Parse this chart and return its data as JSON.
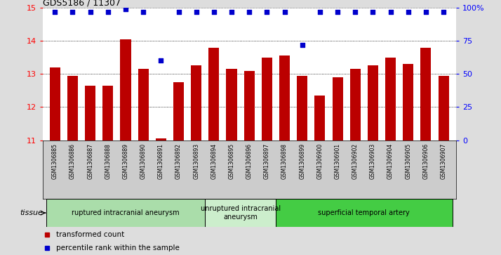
{
  "title": "GDS5186 / 11307",
  "samples": [
    "GSM1306885",
    "GSM1306886",
    "GSM1306887",
    "GSM1306888",
    "GSM1306889",
    "GSM1306890",
    "GSM1306891",
    "GSM1306892",
    "GSM1306893",
    "GSM1306894",
    "GSM1306895",
    "GSM1306896",
    "GSM1306897",
    "GSM1306898",
    "GSM1306899",
    "GSM1306900",
    "GSM1306901",
    "GSM1306902",
    "GSM1306903",
    "GSM1306904",
    "GSM1306905",
    "GSM1306906",
    "GSM1306907"
  ],
  "bar_values": [
    13.2,
    12.95,
    12.65,
    12.65,
    14.05,
    13.15,
    11.05,
    12.75,
    13.25,
    13.8,
    13.15,
    13.1,
    13.5,
    13.55,
    12.95,
    12.35,
    12.9,
    13.15,
    13.25,
    13.5,
    13.3,
    13.8,
    12.95
  ],
  "percentile_values": [
    97,
    97,
    97,
    97,
    99,
    97,
    60,
    97,
    97,
    97,
    97,
    97,
    97,
    97,
    72,
    97,
    97,
    97,
    97,
    97,
    97,
    97,
    97
  ],
  "bar_color": "#bb0000",
  "dot_color": "#0000cc",
  "ylim_left": [
    11,
    15
  ],
  "ylim_right": [
    0,
    100
  ],
  "yticks_left": [
    11,
    12,
    13,
    14,
    15
  ],
  "yticks_right": [
    0,
    25,
    50,
    75,
    100
  ],
  "ytick_labels_right": [
    "0",
    "25",
    "50",
    "75",
    "100%"
  ],
  "grid_values": [
    12,
    13,
    14
  ],
  "tissue_groups": [
    {
      "label": "ruptured intracranial aneurysm",
      "start": 0,
      "end": 9,
      "color": "#aaddaa"
    },
    {
      "label": "unruptured intracranial\naneurysm",
      "start": 9,
      "end": 13,
      "color": "#cceecc"
    },
    {
      "label": "superficial temporal artery",
      "start": 13,
      "end": 23,
      "color": "#44cc44"
    }
  ],
  "legend_items": [
    {
      "label": "transformed count",
      "color": "#bb0000"
    },
    {
      "label": "percentile rank within the sample",
      "color": "#0000cc"
    }
  ],
  "background_color": "#dddddd",
  "plot_bg_color": "#ffffff",
  "xticklabel_bg": "#cccccc",
  "tissue_label": "tissue"
}
